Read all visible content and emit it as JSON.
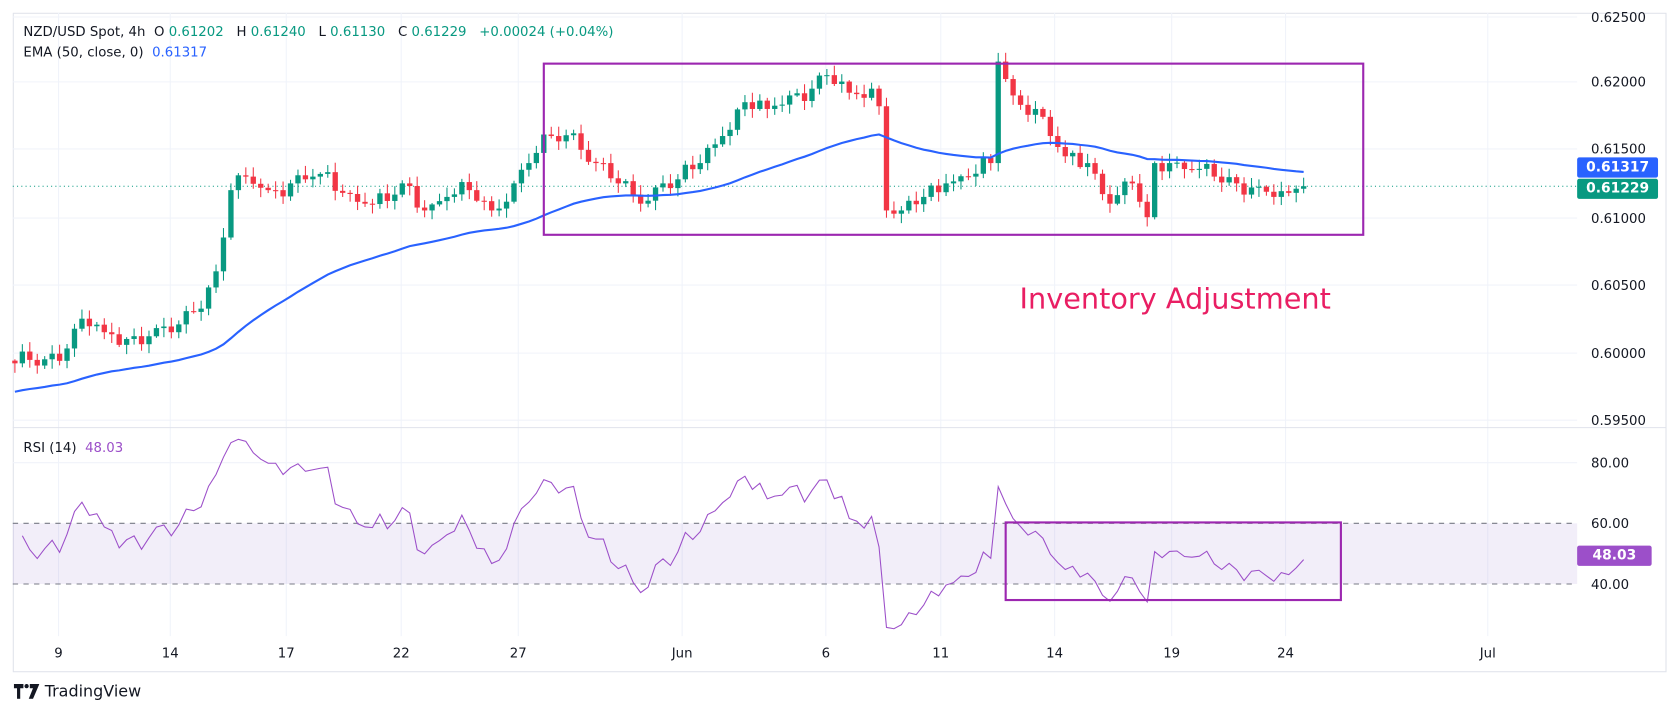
{
  "header": {
    "symbol": "NZD/USD Spot, 4h",
    "open_label": "O",
    "open": "0.61202",
    "high_label": "H",
    "high": "0.61240",
    "low_label": "L",
    "low": "0.61130",
    "close_label": "C",
    "close": "0.61229",
    "change": "+0.00024 (+0.04%)",
    "ema_label": "EMA (50, close, 0)",
    "ema_value": "0.61317"
  },
  "rsi_legend": {
    "label": "RSI (14)",
    "value": "48.03"
  },
  "price_axis": [
    "0.62500",
    "0.62000",
    "0.61500",
    "0.61000",
    "0.60500",
    "0.60000",
    "0.59500"
  ],
  "rsi_axis": [
    "80.00",
    "60.00",
    "40.00"
  ],
  "tags": {
    "ema": "0.61317",
    "price": "0.61229",
    "rsi": "48.03"
  },
  "time_axis": [
    "9",
    "14",
    "17",
    "22",
    "27",
    "Jun",
    "6",
    "11",
    "14",
    "19",
    "24",
    "Jul"
  ],
  "annotation": "Inventory Adjustment",
  "brand": "TradingView",
  "colors": {
    "up": "#089981",
    "down": "#f23645",
    "ema": "#2962ff",
    "rsi": "#9c4fc9",
    "box": "#9c27b0",
    "annotation": "#e91e63"
  },
  "chart_data": {
    "type": "candlestick",
    "title": "NZD/USD Spot, 4h",
    "ylim": [
      0.5945,
      0.6255
    ],
    "rsi_ylim": [
      25,
      90
    ],
    "rsi_bands": [
      40,
      60
    ],
    "close_path_bar_index_price": [
      [
        0,
        0.5992
      ],
      [
        4,
        0.5995
      ],
      [
        7,
        0.6003
      ],
      [
        9,
        0.6025
      ],
      [
        12,
        0.6015
      ],
      [
        15,
        0.601
      ],
      [
        18,
        0.6012
      ],
      [
        21,
        0.6015
      ],
      [
        24,
        0.603
      ],
      [
        27,
        0.606
      ],
      [
        28,
        0.6085
      ],
      [
        29,
        0.612
      ],
      [
        31,
        0.613
      ],
      [
        34,
        0.612
      ],
      [
        37,
        0.6125
      ],
      [
        40,
        0.613
      ],
      [
        41,
        0.6132
      ],
      [
        44,
        0.6118
      ],
      [
        47,
        0.611
      ],
      [
        50,
        0.6112
      ],
      [
        52,
        0.6125
      ],
      [
        55,
        0.6105
      ],
      [
        58,
        0.6115
      ],
      [
        61,
        0.612
      ],
      [
        64,
        0.6105
      ],
      [
        67,
        0.6125
      ],
      [
        69,
        0.614
      ],
      [
        72,
        0.616
      ],
      [
        75,
        0.6162
      ],
      [
        78,
        0.614
      ],
      [
        81,
        0.6125
      ],
      [
        84,
        0.611
      ],
      [
        87,
        0.6125
      ],
      [
        89,
        0.6128
      ],
      [
        92,
        0.614
      ],
      [
        95,
        0.616
      ],
      [
        98,
        0.6185
      ],
      [
        101,
        0.618
      ],
      [
        104,
        0.619
      ],
      [
        107,
        0.6195
      ],
      [
        109,
        0.6205
      ],
      [
        112,
        0.6192
      ],
      [
        115,
        0.6195
      ],
      [
        116,
        0.6182
      ],
      [
        117,
        0.6105
      ],
      [
        119,
        0.6105
      ],
      [
        122,
        0.6115
      ],
      [
        125,
        0.6125
      ],
      [
        128,
        0.613
      ],
      [
        131,
        0.614
      ],
      [
        132,
        0.6215
      ],
      [
        134,
        0.619
      ],
      [
        137,
        0.618
      ],
      [
        139,
        0.616
      ],
      [
        141,
        0.6145
      ],
      [
        144,
        0.614
      ],
      [
        147,
        0.611
      ],
      [
        150,
        0.6125
      ],
      [
        152,
        0.61
      ],
      [
        153,
        0.614
      ],
      [
        155,
        0.614
      ],
      [
        158,
        0.6135
      ],
      [
        161,
        0.613
      ],
      [
        164,
        0.6125
      ],
      [
        166,
        0.6122
      ],
      [
        169,
        0.6115
      ],
      [
        171,
        0.6118
      ],
      [
        173,
        0.6123
      ]
    ],
    "ema_start": 0.5971,
    "range_box_price": {
      "bars": [
        71,
        181
      ],
      "price": [
        0.6087,
        0.62135
      ]
    },
    "range_box_rsi": {
      "bars": [
        133,
        178
      ],
      "rsi": [
        34.7,
        60.3
      ]
    },
    "last_rsi": 48.03
  }
}
